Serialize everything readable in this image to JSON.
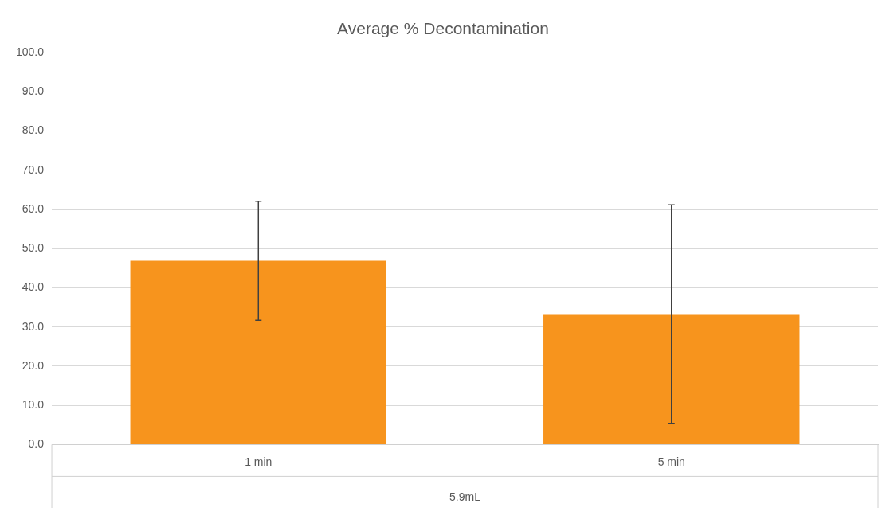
{
  "chart_data": {
    "type": "bar",
    "title": "Average % Decontamination",
    "xlabel": "5.9mL",
    "categories": [
      "1 min",
      "5 min"
    ],
    "series": [
      {
        "color": "#f7941d",
        "values": [
          46.9,
          33.3
        ],
        "errors": [
          15.2,
          27.9
        ]
      }
    ],
    "ylim": [
      0,
      100
    ],
    "yticks": [
      {
        "value": 0,
        "label": "0.0"
      },
      {
        "value": 10,
        "label": "10.0"
      },
      {
        "value": 20,
        "label": "20.0"
      },
      {
        "value": 30,
        "label": "30.0"
      },
      {
        "value": 40,
        "label": "40.0"
      },
      {
        "value": 50,
        "label": "50.0"
      },
      {
        "value": 60,
        "label": "60.0"
      },
      {
        "value": 70,
        "label": "70.0"
      },
      {
        "value": 80,
        "label": "80.0"
      },
      {
        "value": 90,
        "label": "90.0"
      },
      {
        "value": 100,
        "label": "100.0"
      }
    ],
    "grid": "y",
    "legend": false
  }
}
